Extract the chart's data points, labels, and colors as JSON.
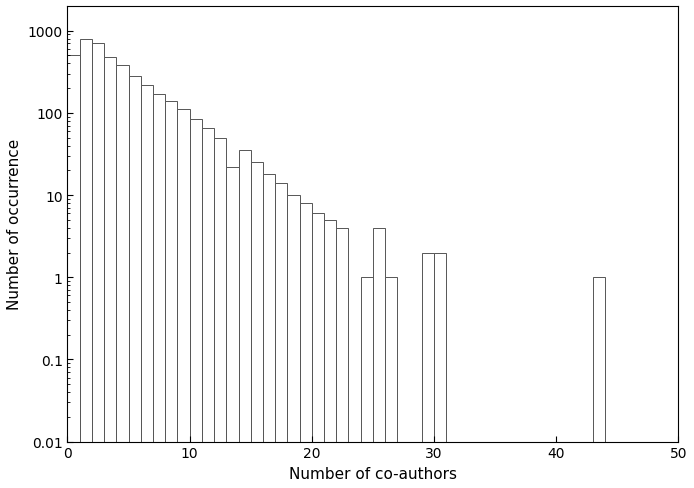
{
  "title": "",
  "xlabel": "Number of co-authors",
  "ylabel": "Number of occurrence",
  "xlim": [
    0,
    50
  ],
  "ylim": [
    0.01,
    2000
  ],
  "bin_values": [
    500,
    800,
    700,
    480,
    380,
    280,
    220,
    170,
    140,
    110,
    85,
    65,
    50,
    22,
    35,
    25,
    18,
    14,
    10,
    8,
    6,
    5,
    4,
    0,
    1,
    4,
    1,
    0,
    0,
    2,
    2,
    0,
    0,
    0,
    0,
    0,
    0,
    0,
    0,
    0,
    0,
    0,
    0,
    1,
    0,
    0,
    0,
    0,
    0,
    0
  ],
  "line_color": "#555555",
  "background_color": "#ffffff",
  "tick_label_size": 10,
  "axis_label_size": 11
}
